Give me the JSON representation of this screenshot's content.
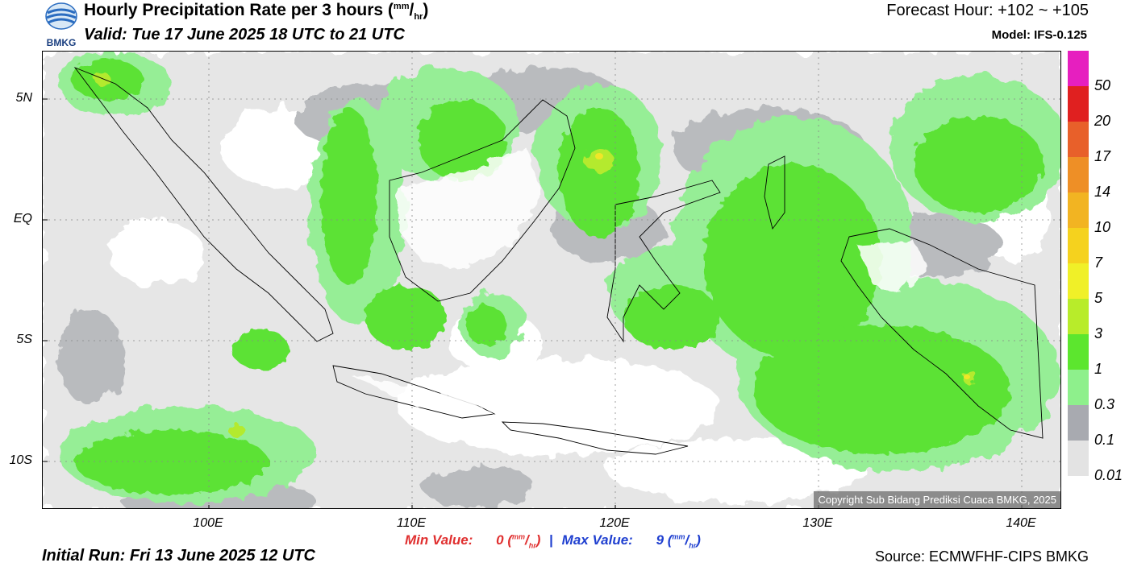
{
  "header": {
    "title": "Hourly Precipitation Rate per 3 hours",
    "title_unit_num": "mm",
    "title_unit_den": "hr",
    "valid": "Valid: Tue 17 June 2025 18 UTC to 21 UTC",
    "forecast_hour": "Forecast Hour: +102 ~ +105",
    "model": "Model: IFS-0.125",
    "logo_text": "BMKG"
  },
  "axes": {
    "lat_labels": [
      "5N",
      "EQ",
      "5S",
      "10S"
    ],
    "lon_labels": [
      "100E",
      "110E",
      "120E",
      "130E",
      "140E"
    ]
  },
  "colorbar": {
    "labels": [
      "50",
      "20",
      "17",
      "14",
      "10",
      "7",
      "5",
      "3",
      "1",
      "0.3",
      "0.1",
      "0.01"
    ],
    "colors": [
      "#e61fbf",
      "#e02020",
      "#e8602a",
      "#ee8f26",
      "#f2b422",
      "#f5d21e",
      "#f0f028",
      "#b8ec2a",
      "#5ce62e",
      "#8ef08c",
      "#a8aab0",
      "#e3e3e3"
    ]
  },
  "map": {
    "colors": {
      "light": "#e6e6e6",
      "grey": "#b9bbbe",
      "lightgreen": "#96ee96",
      "green": "#5be236",
      "yellowgreen": "#b4ea2e",
      "yellow": "#f0e628",
      "land": "#ffffff"
    },
    "copyright": "Copyright Sub Bidang Prediksi Cuaca BMKG, 2025"
  },
  "footer": {
    "min_label": "Min Value:",
    "min_value": "0",
    "max_label": "Max Value:",
    "max_value": "9",
    "separator": "|",
    "unit_num": "mm",
    "unit_den": "hr",
    "initial_run": "Initial Run: Fri 13 June 2025 12 UTC",
    "source": "Source: ECMWFHF-CIPS BMKG"
  }
}
